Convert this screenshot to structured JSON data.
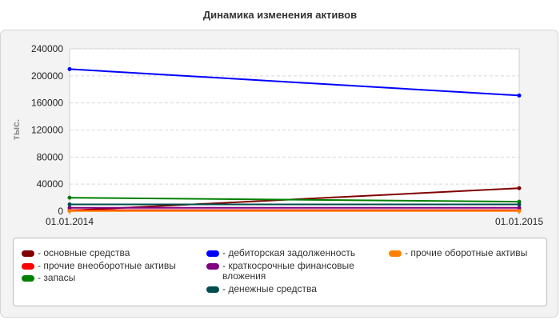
{
  "chart_data": {
    "type": "line",
    "title": "Динамика изменения активов",
    "ylabel": "тыс.",
    "xlabel": "",
    "x": [
      "01.01.2014",
      "01.01.2015"
    ],
    "ylim": [
      0,
      240000
    ],
    "yticks": [
      "0",
      "40000",
      "80000",
      "120000",
      "160000",
      "200000",
      "240000"
    ],
    "grid": true,
    "legend_position": "bottom",
    "series": [
      {
        "name": "- основные средства",
        "color": "#800000",
        "values": [
          1000,
          34000
        ]
      },
      {
        "name": "- прочие внеоборотные активы",
        "color": "#ff0000",
        "values": [
          1500,
          1500
        ]
      },
      {
        "name": "- запасы",
        "color": "#008000",
        "values": [
          20000,
          14000
        ]
      },
      {
        "name": "- дебиторская задолженность",
        "color": "#0000ff",
        "values": [
          210000,
          171000
        ]
      },
      {
        "name": "- краткосрочные финансовые вложения",
        "color": "#800080",
        "values": [
          5000,
          5000
        ]
      },
      {
        "name": "- денежные средства",
        "color": "#004d4d",
        "values": [
          10000,
          10000
        ]
      },
      {
        "name": "- прочие оборотные активы",
        "color": "#ff8000",
        "values": [
          300,
          300
        ]
      }
    ]
  }
}
